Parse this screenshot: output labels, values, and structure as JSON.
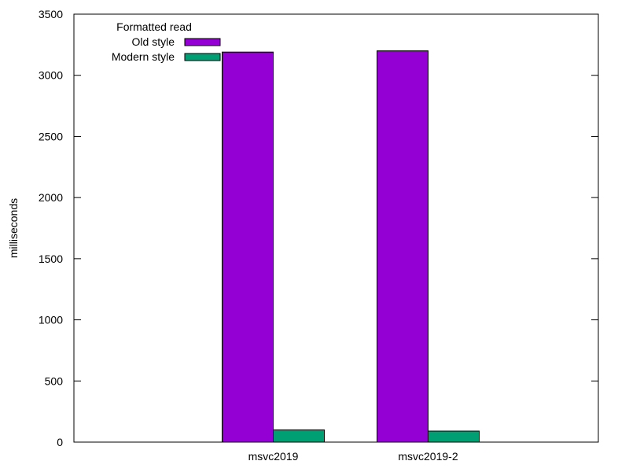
{
  "chart_data": {
    "type": "bar",
    "title": "",
    "xlabel": "",
    "ylabel": "milliseconds",
    "ylim": [
      0,
      3500
    ],
    "yticks": [
      0,
      500,
      1000,
      1500,
      2000,
      2500,
      3000,
      3500
    ],
    "categories": [
      "msvc2019",
      "msvc2019-2"
    ],
    "legend": {
      "title": "Formatted read",
      "placement": "top-left"
    },
    "series": [
      {
        "name": "Old style",
        "values": [
          3190,
          3200
        ],
        "color": "#9400d3"
      },
      {
        "name": "Modern style",
        "values": [
          100,
          90
        ],
        "color": "#009e73"
      }
    ],
    "grid": false
  }
}
